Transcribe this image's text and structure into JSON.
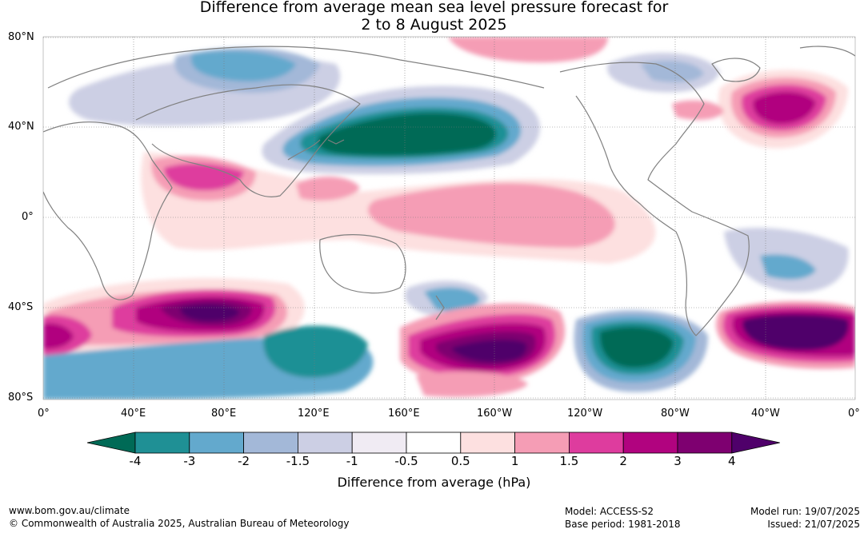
{
  "title": {
    "line1": "Difference from average mean sea level pressure forecast for",
    "line2": "2 to 8 August 2025"
  },
  "lat_labels": [
    "80°N",
    "40°N",
    "0°",
    "40°S",
    "80°S"
  ],
  "lon_labels": [
    "0°",
    "40°E",
    "80°E",
    "120°E",
    "160°E",
    "160°W",
    "120°W",
    "80°W",
    "40°W",
    "0°"
  ],
  "colorbar": {
    "title": "Difference from average (hPa)",
    "ticks": [
      "-4",
      "-3",
      "-2",
      "-1.5",
      "-1",
      "-0.5",
      "0.5",
      "1",
      "1.5",
      "2",
      "3",
      "4"
    ],
    "colors": [
      "#006a56",
      "#1f9095",
      "#63a9cd",
      "#a3b8d8",
      "#cccfe4",
      "#f0ebf3",
      "#ffffff",
      "#fde0e0",
      "#f59db5",
      "#de3c9e",
      "#b1037f",
      "#7e0070",
      "#4f006a"
    ]
  },
  "footer": {
    "url": "www.bom.gov.au/climate",
    "copyright": "© Commonwealth of Australia 2025, Australian Bureau of Meteorology",
    "model": "Model: ACCESS-S2",
    "base_period": "Base period: 1981-2018",
    "model_run": "Model run: 19/07/2025",
    "issued": "Issued: 21/07/2025"
  }
}
